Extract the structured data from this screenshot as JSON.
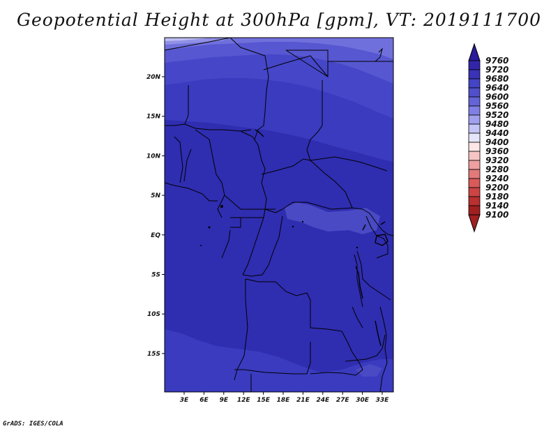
{
  "title": "Geopotential Height at 300hPa [gpm], VT: 2019111700",
  "credit": "GrADS: IGES/COLA",
  "map": {
    "lon_labels": [
      "3E",
      "6E",
      "9E",
      "12E",
      "15E",
      "18E",
      "21E",
      "24E",
      "27E",
      "30E",
      "33E"
    ],
    "lat_labels": [
      "20N",
      "15N",
      "10N",
      "5N",
      "EQ",
      "5S",
      "10S",
      "15S"
    ]
  },
  "colorbar": {
    "levels": [
      "9760",
      "9720",
      "9680",
      "9640",
      "9600",
      "9560",
      "9520",
      "9480",
      "9440",
      "9400",
      "9360",
      "9320",
      "9280",
      "9240",
      "9200",
      "9180",
      "9140",
      "9100"
    ],
    "colors": [
      "#2a1c9a",
      "#3325a8",
      "#3a32b8",
      "#4444c6",
      "#5050cc",
      "#6464d8",
      "#8080e4",
      "#a0a0ee",
      "#c4c4f6",
      "#e6e6fb",
      "#fce6e6",
      "#f6c4c4",
      "#ee9f9f",
      "#e27a7a",
      "#d85a5a",
      "#cc4444",
      "#b83030",
      "#a02020"
    ]
  },
  "colors": {
    "band_high": "#2f2db0",
    "band_mid": "#3a3bbf",
    "band_upper": "#4646c8",
    "band_top": "#5757d2",
    "band_topmost": "#7070dc",
    "band_edge": "#9090e6",
    "band_pale": "#bcbcf2",
    "patch": "#5050c8",
    "border": "#000000"
  }
}
